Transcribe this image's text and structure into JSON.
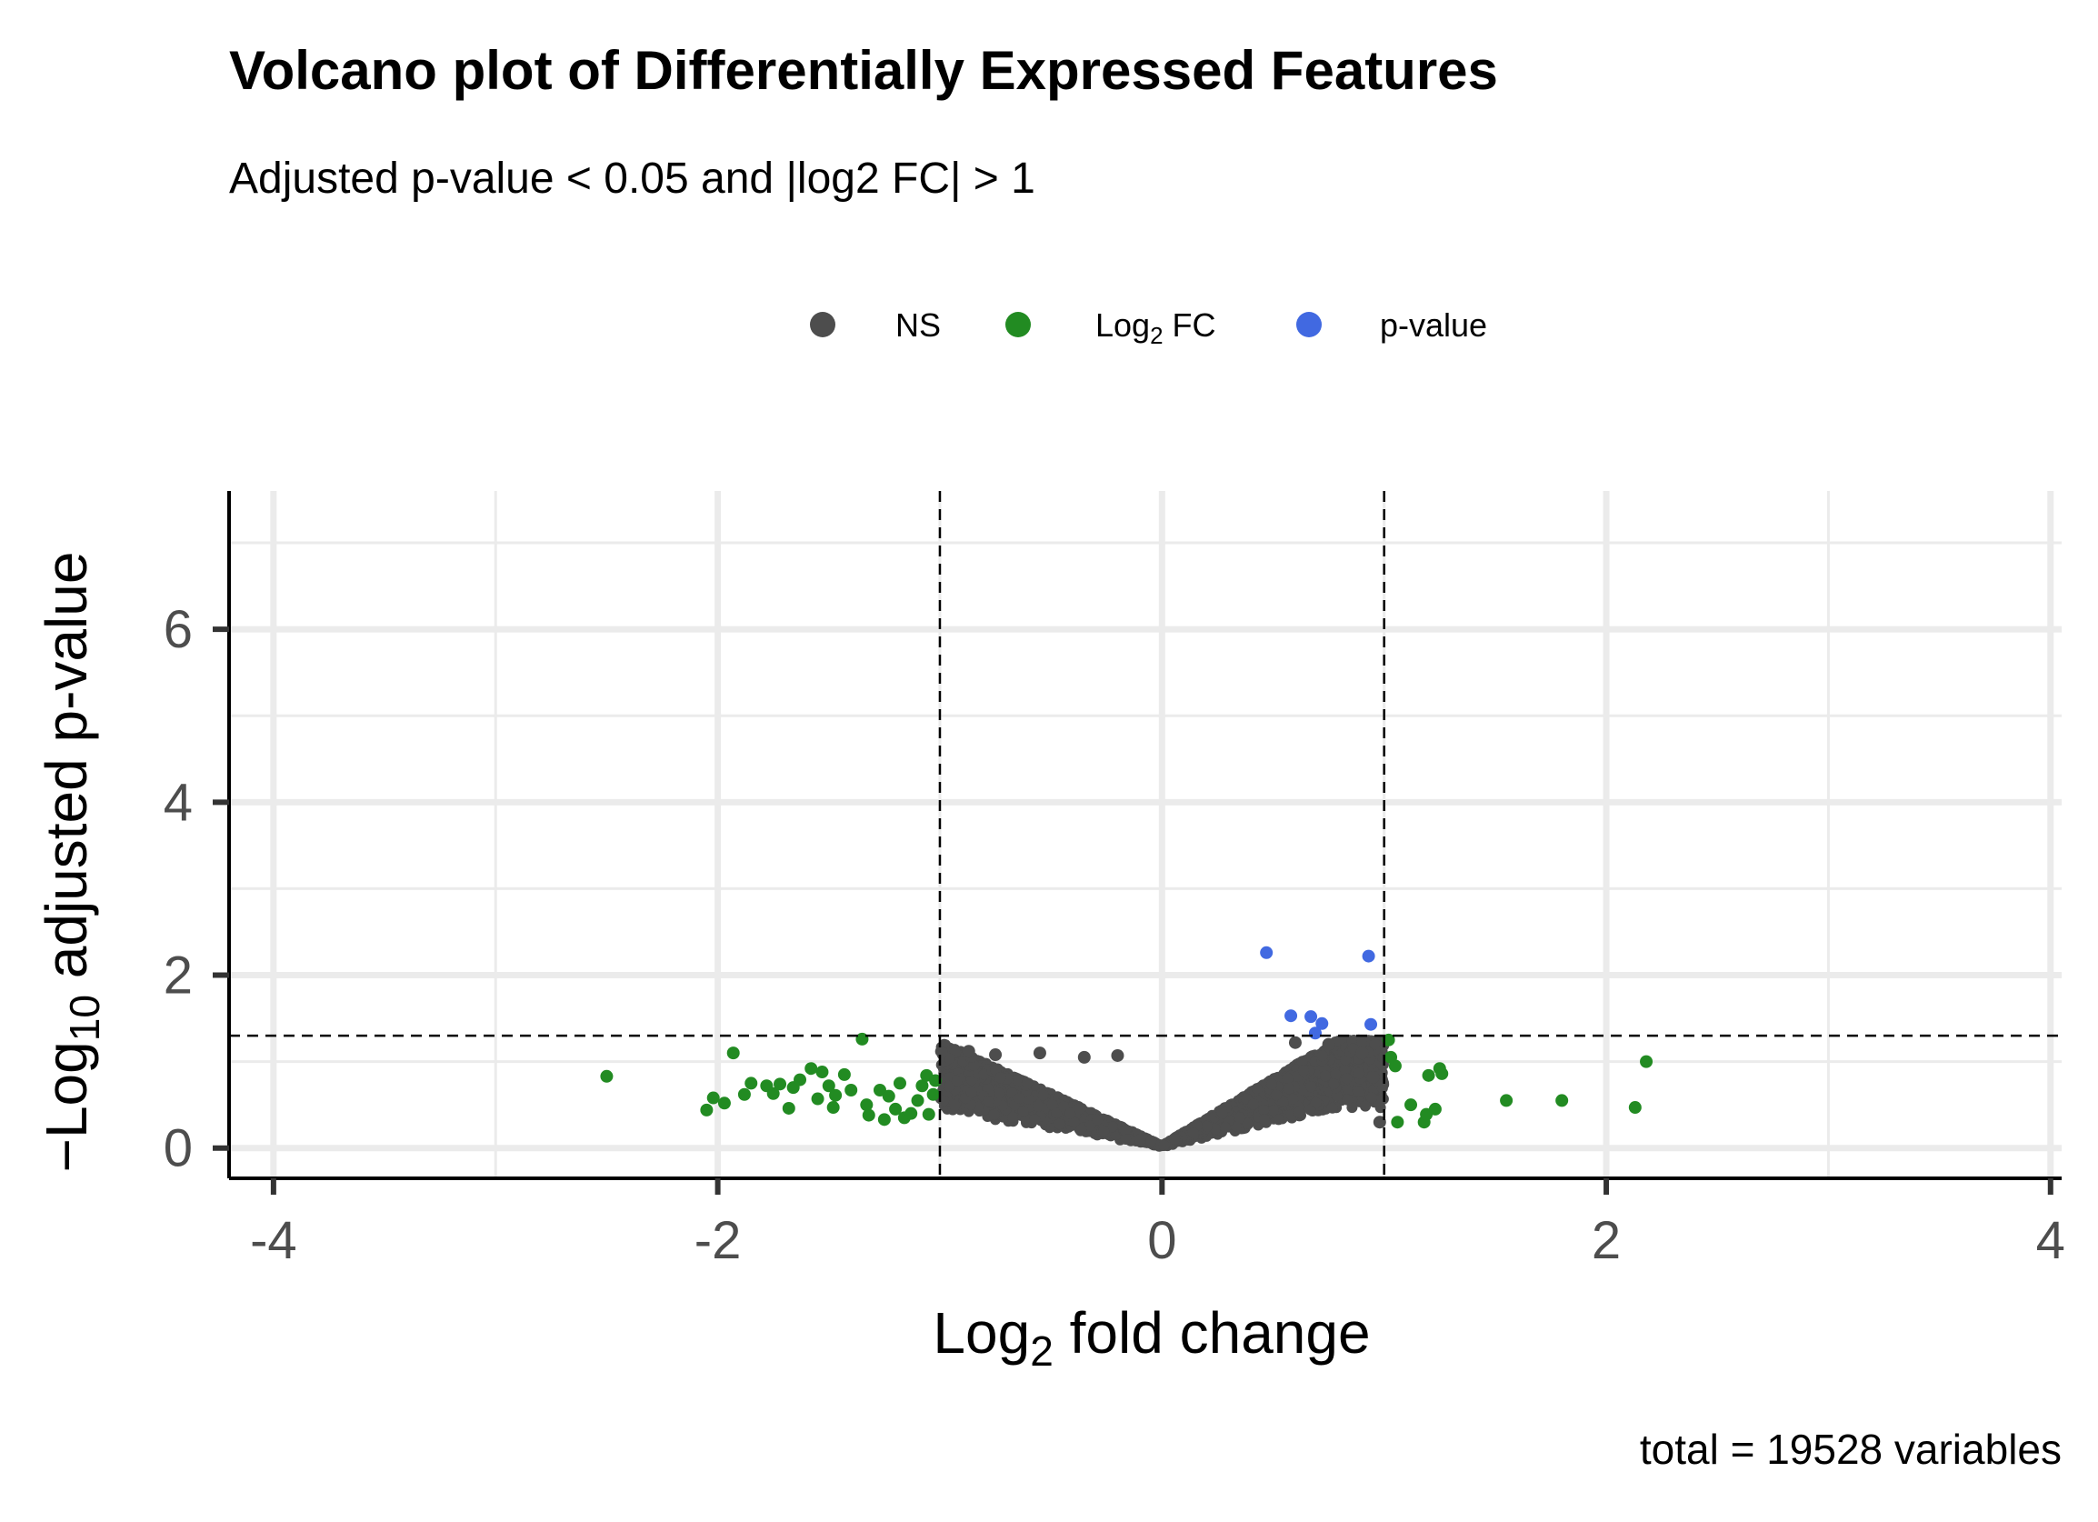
{
  "chart_data": {
    "type": "scatter",
    "title": "Volcano plot of Differentially Expressed Features",
    "subtitle": "Adjusted p-value < 0.05 and |log2 FC| > 1",
    "xlabel": "Log2 fold change",
    "ylabel": "-Log10 adjusted p-value",
    "caption": "total = 19528 variables",
    "xlim": [
      -4.2,
      4.05
    ],
    "ylim": [
      -0.35,
      7.6
    ],
    "x_ticks": [
      -4,
      -2,
      0,
      2,
      4
    ],
    "x_tick_labels": [
      "-4",
      "-2",
      "0",
      "2",
      "4"
    ],
    "y_ticks": [
      0,
      2,
      4,
      6
    ],
    "y_tick_labels": [
      "0",
      "2",
      "4",
      "6"
    ],
    "grid": true,
    "legend_position": "top",
    "cutoffs": {
      "log2fc": [
        -1,
        1
      ],
      "neg_log10_p": 1.3
    },
    "series": [
      {
        "name": "NS",
        "color": "#4d4d4d",
        "envelope": {
          "x_min": -1.0,
          "x_max": 1.0,
          "y_max": 1.3
        },
        "points": [
          {
            "x": -0.87,
            "y": 1.12
          },
          {
            "x": -0.75,
            "y": 1.08
          },
          {
            "x": -0.55,
            "y": 1.1
          },
          {
            "x": -0.35,
            "y": 1.05
          },
          {
            "x": -0.2,
            "y": 1.07
          },
          {
            "x": 0.6,
            "y": 1.22
          },
          {
            "x": 0.75,
            "y": 1.2
          },
          {
            "x": 0.9,
            "y": 1.1
          },
          {
            "x": 0.95,
            "y": 0.82
          },
          {
            "x": 0.98,
            "y": 0.3
          }
        ]
      },
      {
        "name": "Log2 FC",
        "color": "#228b22",
        "points": [
          {
            "x": -2.5,
            "y": 0.83
          },
          {
            "x": -2.05,
            "y": 0.44
          },
          {
            "x": -2.02,
            "y": 0.58
          },
          {
            "x": -1.97,
            "y": 0.52
          },
          {
            "x": -1.93,
            "y": 1.1
          },
          {
            "x": -1.88,
            "y": 0.62
          },
          {
            "x": -1.85,
            "y": 0.75
          },
          {
            "x": -1.78,
            "y": 0.72
          },
          {
            "x": -1.75,
            "y": 0.63
          },
          {
            "x": -1.72,
            "y": 0.74
          },
          {
            "x": -1.68,
            "y": 0.46
          },
          {
            "x": -1.66,
            "y": 0.7
          },
          {
            "x": -1.63,
            "y": 0.79
          },
          {
            "x": -1.58,
            "y": 0.92
          },
          {
            "x": -1.55,
            "y": 0.57
          },
          {
            "x": -1.53,
            "y": 0.88
          },
          {
            "x": -1.5,
            "y": 0.72
          },
          {
            "x": -1.48,
            "y": 0.47
          },
          {
            "x": -1.47,
            "y": 0.61
          },
          {
            "x": -1.43,
            "y": 0.85
          },
          {
            "x": -1.4,
            "y": 0.67
          },
          {
            "x": -1.35,
            "y": 1.26
          },
          {
            "x": -1.33,
            "y": 0.5
          },
          {
            "x": -1.32,
            "y": 0.38
          },
          {
            "x": -1.27,
            "y": 0.67
          },
          {
            "x": -1.25,
            "y": 0.33
          },
          {
            "x": -1.23,
            "y": 0.6
          },
          {
            "x": -1.2,
            "y": 0.45
          },
          {
            "x": -1.18,
            "y": 0.75
          },
          {
            "x": -1.16,
            "y": 0.35
          },
          {
            "x": -1.13,
            "y": 0.4
          },
          {
            "x": -1.1,
            "y": 0.55
          },
          {
            "x": -1.08,
            "y": 0.72
          },
          {
            "x": -1.06,
            "y": 0.84
          },
          {
            "x": -1.05,
            "y": 0.39
          },
          {
            "x": -1.03,
            "y": 0.62
          },
          {
            "x": -1.02,
            "y": 0.78
          },
          {
            "x": 1.02,
            "y": 1.25
          },
          {
            "x": 1.03,
            "y": 1.05
          },
          {
            "x": 1.05,
            "y": 0.95
          },
          {
            "x": 1.06,
            "y": 0.3
          },
          {
            "x": 1.12,
            "y": 0.5
          },
          {
            "x": 1.18,
            "y": 0.3
          },
          {
            "x": 1.19,
            "y": 0.39
          },
          {
            "x": 1.2,
            "y": 0.84
          },
          {
            "x": 1.23,
            "y": 0.45
          },
          {
            "x": 1.25,
            "y": 0.92
          },
          {
            "x": 1.26,
            "y": 0.86
          },
          {
            "x": 1.55,
            "y": 0.55
          },
          {
            "x": 1.8,
            "y": 0.55
          },
          {
            "x": 2.13,
            "y": 0.47
          },
          {
            "x": 2.18,
            "y": 1.0
          }
        ]
      },
      {
        "name": "p-value",
        "color": "#4169e1",
        "points": [
          {
            "x": 0.47,
            "y": 2.26
          },
          {
            "x": 0.58,
            "y": 1.53
          },
          {
            "x": 0.67,
            "y": 1.52
          },
          {
            "x": 0.72,
            "y": 1.44
          },
          {
            "x": 0.93,
            "y": 2.22
          },
          {
            "x": 0.94,
            "y": 1.43
          },
          {
            "x": 0.69,
            "y": 1.33
          }
        ]
      }
    ]
  }
}
